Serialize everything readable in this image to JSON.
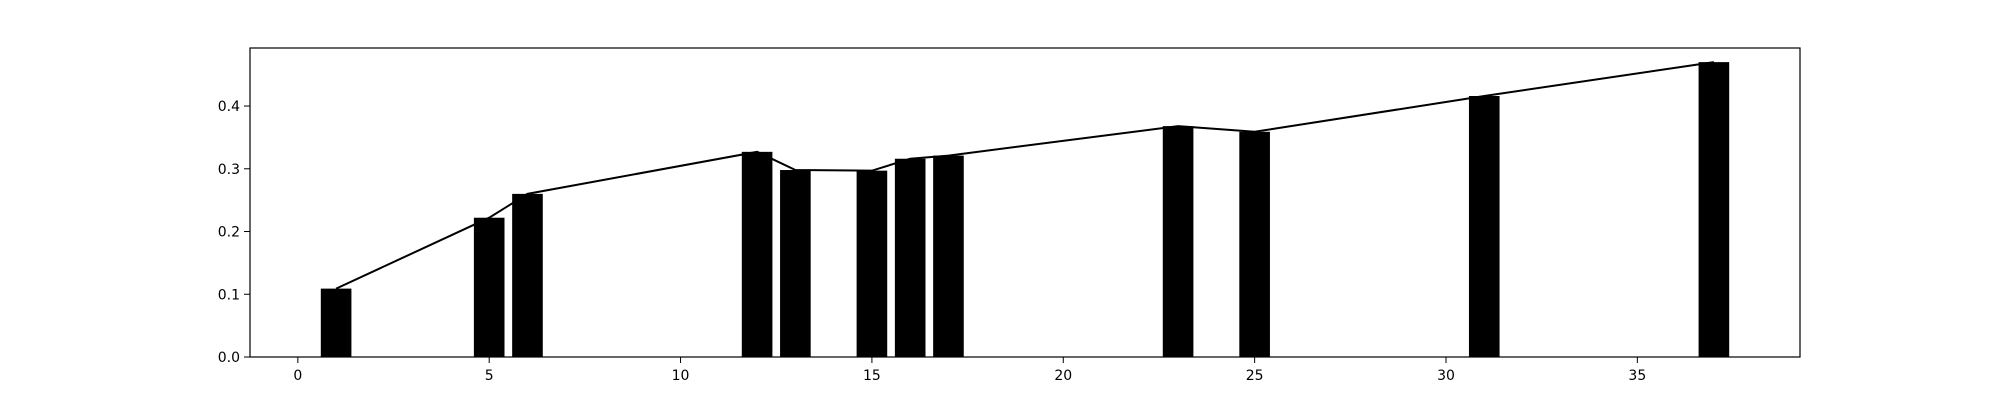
{
  "chart_data": {
    "type": "bar",
    "title": "",
    "xlabel": "",
    "ylabel": "",
    "grid": false,
    "legend": "none",
    "xlim": [
      -1.25,
      39.25
    ],
    "ylim": [
      0,
      0.4925
    ],
    "xticks": [
      0,
      5,
      10,
      15,
      20,
      25,
      30,
      35
    ],
    "yticks": [
      0.0,
      0.1,
      0.2,
      0.3,
      0.4
    ],
    "bar_width": 0.8,
    "series": [
      {
        "type": "bar",
        "x": [
          1,
          5,
          6,
          12,
          13,
          15,
          16,
          17,
          23,
          25,
          31,
          37
        ],
        "values": [
          0.109,
          0.222,
          0.26,
          0.327,
          0.298,
          0.297,
          0.316,
          0.321,
          0.368,
          0.359,
          0.416,
          0.47
        ]
      },
      {
        "type": "line",
        "x": [
          1,
          5,
          6,
          12,
          13,
          15,
          16,
          17,
          23,
          25,
          31,
          37
        ],
        "values": [
          0.109,
          0.222,
          0.26,
          0.327,
          0.298,
          0.297,
          0.316,
          0.321,
          0.368,
          0.359,
          0.416,
          0.47
        ]
      }
    ],
    "colors": {
      "bar": "#000000",
      "line": "#000000",
      "axes": "#000000"
    }
  }
}
